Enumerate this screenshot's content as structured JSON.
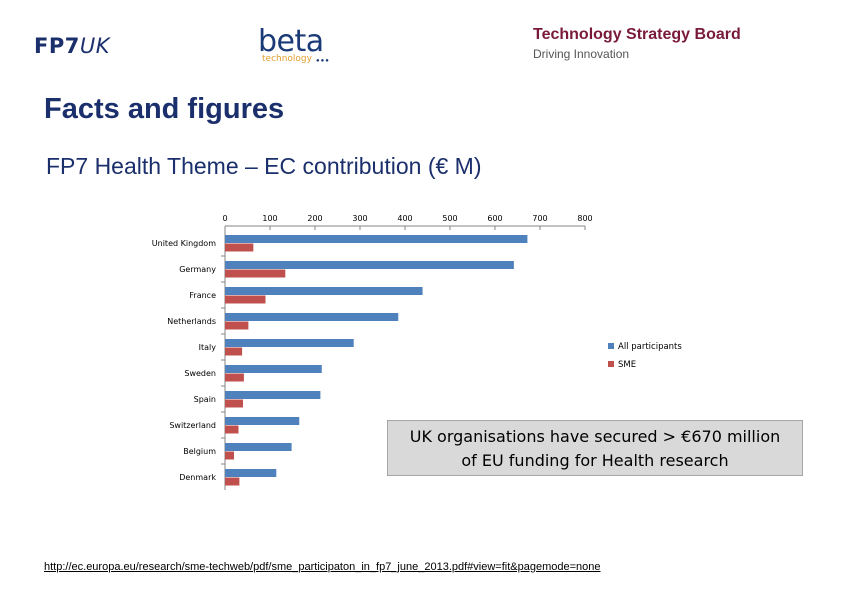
{
  "header": {
    "fp7_bold": "FP7",
    "fp7_italic": "UK",
    "beta_logo": {
      "word": "beta",
      "subtitle": "technology",
      "dots": "●●●",
      "color": "#1a3a78"
    },
    "tsb_title": "Technology Strategy Board",
    "tsb_subtitle": "Driving Innovation"
  },
  "page_title": "Facts and figures",
  "callout": {
    "line1": "UK organisations have secured > €670 million",
    "line2": "of EU funding for Health research"
  },
  "source_link": "http://ec.europa.eu/research/sme-techweb/pdf/sme_participaton_in_fp7_june_2013.pdf#view=fit&pagemode=none",
  "chart_data": {
    "type": "bar",
    "orientation": "horizontal",
    "title": "FP7 Health Theme – EC contribution (€ M)",
    "xlabel": "",
    "ylabel": "",
    "xlim": [
      0,
      800
    ],
    "xticks": [
      0,
      100,
      200,
      300,
      400,
      500,
      600,
      700,
      800
    ],
    "x_axis_position": "top",
    "grid": false,
    "legend_position": "right",
    "categories": [
      "United Kingdom",
      "Germany",
      "France",
      "Netherlands",
      "Italy",
      "Sweden",
      "Spain",
      "Switzerland",
      "Belgium",
      "Denmark"
    ],
    "series": [
      {
        "name": "All participants",
        "color": "#4f81bd",
        "values": [
          672,
          642,
          439,
          385,
          286,
          215,
          212,
          165,
          148,
          114
        ]
      },
      {
        "name": "SME",
        "color": "#c0504d",
        "values": [
          63,
          134,
          90,
          52,
          38,
          42,
          40,
          30,
          20,
          32
        ]
      }
    ]
  }
}
